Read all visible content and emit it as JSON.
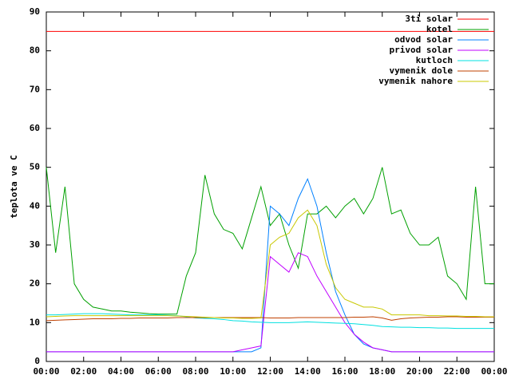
{
  "chart_data": {
    "type": "line",
    "ylabel": "teplota ve C",
    "x": [
      0,
      0.5,
      1,
      1.5,
      2,
      2.5,
      3,
      3.5,
      4,
      4.5,
      5,
      5.5,
      6,
      6.5,
      7,
      7.5,
      8,
      8.5,
      9,
      9.5,
      10,
      10.5,
      11,
      11.5,
      12,
      12.5,
      13,
      13.5,
      14,
      14.5,
      15,
      15.5,
      16,
      16.5,
      17,
      17.5,
      18,
      18.5,
      19,
      19.5,
      20,
      20.5,
      21,
      21.5,
      22,
      22.5,
      23,
      23.5,
      24
    ],
    "xlim": [
      0,
      24
    ],
    "xticks": [
      {
        "value": 0,
        "label": "00:00"
      },
      {
        "value": 2,
        "label": "02:00"
      },
      {
        "value": 4,
        "label": "04:00"
      },
      {
        "value": 6,
        "label": "06:00"
      },
      {
        "value": 8,
        "label": "08:00"
      },
      {
        "value": 10,
        "label": "10:00"
      },
      {
        "value": 12,
        "label": "12:00"
      },
      {
        "value": 14,
        "label": "14:00"
      },
      {
        "value": 16,
        "label": "16:00"
      },
      {
        "value": 18,
        "label": "18:00"
      },
      {
        "value": 20,
        "label": "20:00"
      },
      {
        "value": 22,
        "label": "22:00"
      },
      {
        "value": 24,
        "label": "00:00"
      }
    ],
    "ylim": [
      0,
      90
    ],
    "yticks": [
      0,
      10,
      20,
      30,
      40,
      50,
      60,
      70,
      80,
      90
    ],
    "legend": "top-right",
    "series": [
      {
        "name": "3ti solar",
        "color": "#ff0000",
        "values": [
          85,
          85,
          85,
          85,
          85,
          85,
          85,
          85,
          85,
          85,
          85,
          85,
          85,
          85,
          85,
          85,
          85,
          85,
          85,
          85,
          85,
          85,
          85,
          85,
          85,
          85,
          85,
          85,
          85,
          85,
          85,
          85,
          85,
          85,
          85,
          85,
          85,
          85,
          85,
          85,
          85,
          85,
          85,
          85,
          85,
          85,
          85,
          85,
          85
        ]
      },
      {
        "name": "kotel",
        "color": "#00a000",
        "values": [
          50,
          28,
          45,
          20,
          16,
          14,
          13.5,
          13,
          13,
          12.7,
          12.5,
          12.3,
          12.2,
          12.2,
          12.2,
          22,
          28,
          48,
          38,
          34,
          33,
          29,
          37,
          45,
          35,
          38,
          30,
          24,
          38,
          38,
          40,
          37,
          40,
          42,
          38,
          42,
          50,
          38,
          39,
          33,
          30,
          30,
          32,
          22,
          20,
          16,
          45,
          20,
          20
        ]
      },
      {
        "name": "odvod solar",
        "color": "#0080ff",
        "values": [
          2.5,
          2.5,
          2.5,
          2.5,
          2.5,
          2.5,
          2.5,
          2.5,
          2.5,
          2.5,
          2.5,
          2.5,
          2.5,
          2.5,
          2.5,
          2.5,
          2.5,
          2.5,
          2.5,
          2.5,
          2.5,
          2.5,
          2.5,
          3.5,
          40,
          38,
          35,
          42,
          47,
          40,
          28,
          18,
          12,
          7,
          4.5,
          3.5,
          3,
          2.5,
          2.5,
          2.5,
          2.5,
          2.5,
          2.5,
          2.5,
          2.5,
          2.5,
          2.5,
          2.5,
          2.5
        ]
      },
      {
        "name": "privod solar",
        "color": "#c000ff",
        "values": [
          2.5,
          2.5,
          2.5,
          2.5,
          2.5,
          2.5,
          2.5,
          2.5,
          2.5,
          2.5,
          2.5,
          2.5,
          2.5,
          2.5,
          2.5,
          2.5,
          2.5,
          2.5,
          2.5,
          2.5,
          2.5,
          3,
          3.5,
          4,
          27,
          25,
          23,
          28,
          27,
          22,
          18,
          14,
          10,
          7,
          5,
          3.5,
          3,
          2.5,
          2.5,
          2.5,
          2.5,
          2.5,
          2.5,
          2.5,
          2.5,
          2.5,
          2.5,
          2.5,
          2.5
        ]
      },
      {
        "name": "kutloch",
        "color": "#00e0e0",
        "values": [
          12,
          12,
          12.1,
          12.2,
          12.3,
          12.3,
          12.3,
          12.2,
          12.1,
          12,
          12,
          12,
          12,
          11.9,
          11.8,
          11.5,
          11.2,
          11.1,
          11,
          10.8,
          10.5,
          10.4,
          10.2,
          10.1,
          10,
          10,
          10,
          10.1,
          10.2,
          10.1,
          10,
          9.9,
          9.8,
          9.7,
          9.5,
          9.3,
          9,
          8.9,
          8.8,
          8.8,
          8.7,
          8.7,
          8.6,
          8.6,
          8.5,
          8.5,
          8.5,
          8.5,
          8.5
        ]
      },
      {
        "name": "vymenik dole",
        "color": "#c04000",
        "values": [
          10.5,
          10.6,
          10.7,
          10.8,
          10.9,
          11,
          11,
          11,
          11.1,
          11.1,
          11.2,
          11.2,
          11.2,
          11.2,
          11.3,
          11.3,
          11.3,
          11.3,
          11.3,
          11.3,
          11.3,
          11.3,
          11.3,
          11.3,
          11.2,
          11.2,
          11.2,
          11.3,
          11.3,
          11.3,
          11.3,
          11.3,
          11.3,
          11.4,
          11.4,
          11.5,
          11.2,
          10.6,
          11,
          11.2,
          11.3,
          11.4,
          11.4,
          11.5,
          11.5,
          11.4,
          11.4,
          11.4,
          11.4
        ]
      },
      {
        "name": "vymenik nahore",
        "color": "#c8c800",
        "values": [
          11.5,
          11.6,
          11.7,
          11.8,
          11.8,
          11.8,
          11.8,
          11.8,
          11.8,
          11.8,
          11.8,
          11.8,
          11.8,
          11.8,
          11.7,
          11.6,
          11.5,
          11.4,
          11.3,
          11.2,
          11.2,
          11.1,
          11.1,
          11.2,
          30,
          32,
          33,
          37,
          39,
          35,
          25,
          19,
          16,
          15,
          14,
          14,
          13.5,
          12,
          12,
          12,
          12,
          11.8,
          11.8,
          11.7,
          11.7,
          11.6,
          11.6,
          11.5,
          11.5
        ]
      }
    ]
  }
}
